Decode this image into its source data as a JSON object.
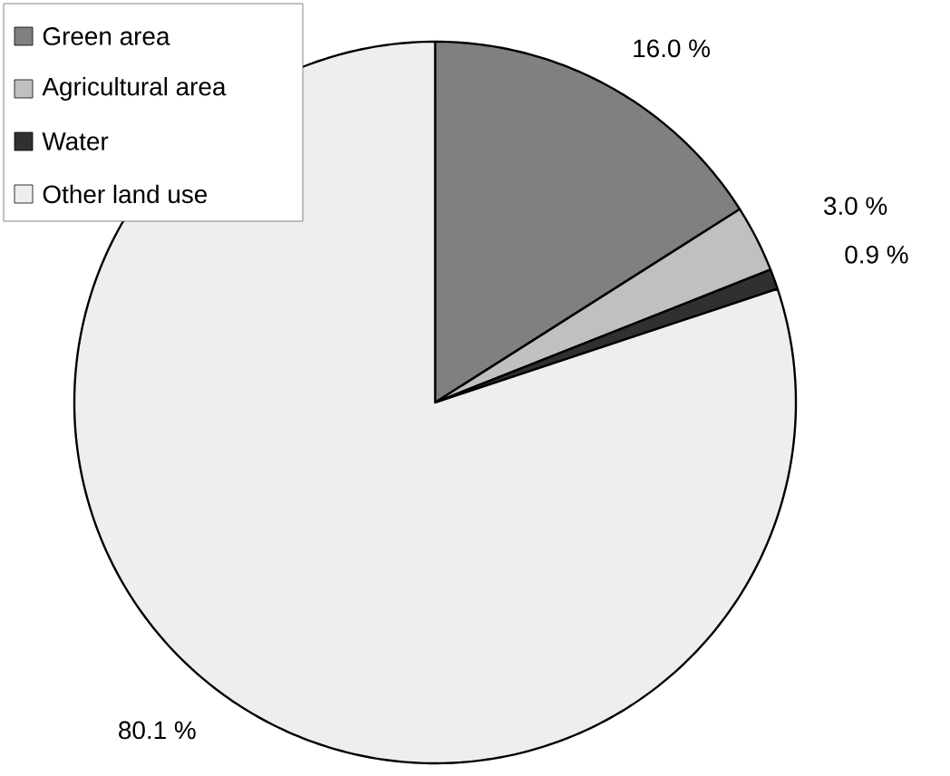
{
  "chart_data": {
    "type": "pie",
    "categories": [
      "Green area",
      "Agricultural area",
      "Water",
      "Other land use"
    ],
    "values": [
      16.0,
      3.0,
      0.9,
      80.1
    ],
    "colors": [
      "#808080",
      "#c0c0c0",
      "#303030",
      "#eeeeee"
    ],
    "value_labels": [
      "16.0 %",
      "3.0 %",
      "0.9 %",
      "80.1 %"
    ],
    "legend": "top left"
  }
}
